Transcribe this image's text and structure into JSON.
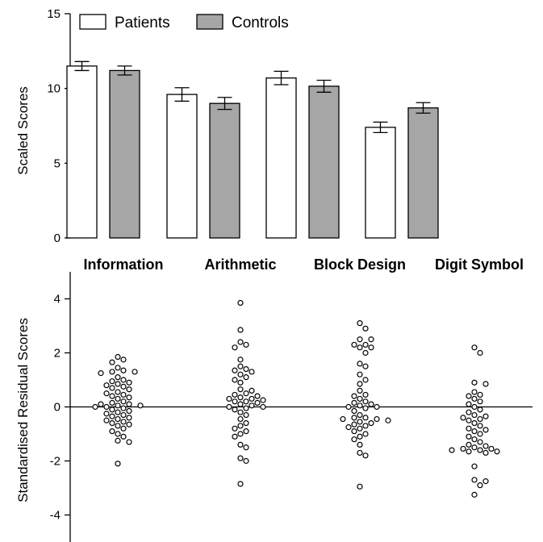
{
  "chart_data": [
    {
      "type": "bar",
      "ylabel": "Scaled Scores",
      "ylim": [
        0,
        15
      ],
      "yticks": [
        "0",
        "5",
        "10",
        "15"
      ],
      "categories": [
        "Information",
        "Arithmetic",
        "Block Design",
        "Digit Symbol"
      ],
      "legend": {
        "placement": "top-left"
      },
      "series": [
        {
          "name": "Patients",
          "color": "#ffffff",
          "values": [
            11.5,
            9.6,
            10.7,
            7.4
          ],
          "error": [
            0.3,
            0.45,
            0.45,
            0.35
          ]
        },
        {
          "name": "Controls",
          "color": "#a6a6a6",
          "values": [
            11.2,
            9.0,
            10.15,
            8.7
          ],
          "error": [
            0.3,
            0.4,
            0.4,
            0.35
          ]
        }
      ]
    },
    {
      "type": "scatter",
      "ylabel": "Standardised Residual Scores",
      "ylim": [
        -5,
        5
      ],
      "yticks": [
        "-4",
        "-2",
        "0",
        "2",
        "4"
      ],
      "reference_line": 0,
      "groups": [
        {
          "category": "Information",
          "values": [
            1.85,
            1.75,
            1.65,
            1.45,
            1.35,
            1.3,
            1.3,
            1.25,
            1.1,
            1.0,
            0.95,
            0.9,
            0.85,
            0.8,
            0.75,
            0.7,
            0.65,
            0.55,
            0.5,
            0.45,
            0.4,
            0.35,
            0.3,
            0.2,
            0.15,
            0.1,
            0.1,
            0.05,
            0.05,
            0.0,
            0.0,
            -0.05,
            -0.1,
            -0.15,
            -0.2,
            -0.25,
            -0.3,
            -0.35,
            -0.4,
            -0.45,
            -0.5,
            -0.55,
            -0.6,
            -0.65,
            -0.7,
            -0.8,
            -0.9,
            -1.0,
            -1.1,
            -1.25,
            -1.3,
            -2.1
          ]
        },
        {
          "category": "Arithmetic",
          "values": [
            3.85,
            2.85,
            2.4,
            2.3,
            2.2,
            1.75,
            1.5,
            1.4,
            1.35,
            1.3,
            1.2,
            1.1,
            1.0,
            0.9,
            0.65,
            0.6,
            0.5,
            0.45,
            0.4,
            0.35,
            0.3,
            0.3,
            0.25,
            0.2,
            0.2,
            0.15,
            0.1,
            0.05,
            0.0,
            0.0,
            -0.05,
            -0.1,
            -0.2,
            -0.3,
            -0.45,
            -0.6,
            -0.7,
            -0.8,
            -0.9,
            -1.0,
            -1.1,
            -1.4,
            -1.5,
            -1.9,
            -2.0,
            -2.85
          ]
        },
        {
          "category": "Block Design",
          "values": [
            3.1,
            2.9,
            2.5,
            2.5,
            2.3,
            2.3,
            2.2,
            2.2,
            2.0,
            1.6,
            1.5,
            1.2,
            1.0,
            0.85,
            0.6,
            0.45,
            0.4,
            0.3,
            0.2,
            0.15,
            0.1,
            0.05,
            0.0,
            0.0,
            -0.05,
            -0.15,
            -0.3,
            -0.4,
            -0.4,
            -0.45,
            -0.45,
            -0.5,
            -0.55,
            -0.6,
            -0.65,
            -0.7,
            -0.75,
            -0.8,
            -0.9,
            -1.0,
            -1.1,
            -1.2,
            -1.4,
            -1.7,
            -1.8,
            -2.95
          ]
        },
        {
          "category": "Digit Symbol",
          "values": [
            2.2,
            2.0,
            0.9,
            0.85,
            0.55,
            0.45,
            0.4,
            0.3,
            0.2,
            0.1,
            0.0,
            -0.1,
            -0.2,
            -0.3,
            -0.35,
            -0.4,
            -0.45,
            -0.5,
            -0.6,
            -0.7,
            -0.8,
            -0.85,
            -0.9,
            -1.0,
            -1.1,
            -1.2,
            -1.3,
            -1.4,
            -1.45,
            -1.5,
            -1.55,
            -1.55,
            -1.6,
            -1.6,
            -1.65,
            -1.65,
            -1.7,
            -2.2,
            -2.7,
            -2.75,
            -2.9,
            -3.25
          ]
        }
      ]
    }
  ]
}
